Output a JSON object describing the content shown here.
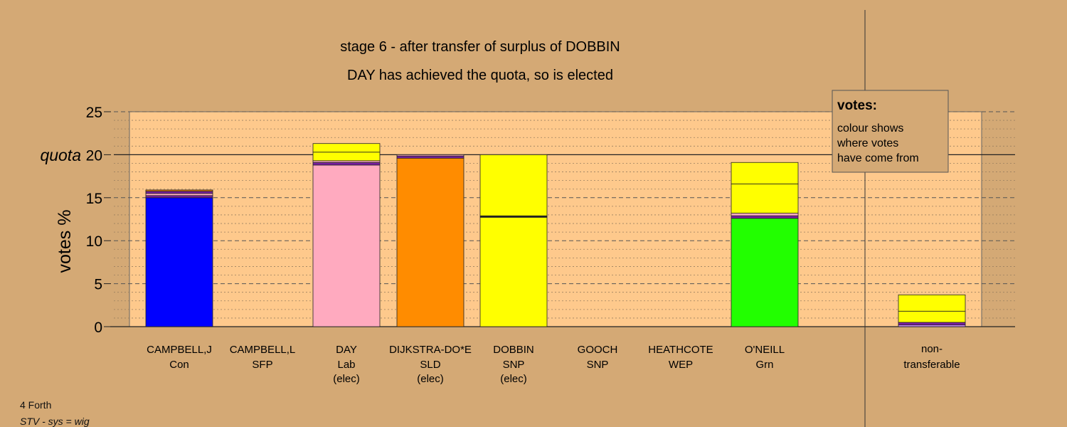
{
  "chart_data": {
    "type": "bar",
    "stacked": true,
    "title": "stage 6 - after transfer of surplus of DOBBIN",
    "subtitle": "DAY has achieved the quota, so is elected",
    "ylabel": "votes %",
    "ylim": [
      0,
      25
    ],
    "yticks": [
      "0",
      "5",
      "10",
      "15",
      "20",
      "25"
    ],
    "quota_label": "quota",
    "quota_value": 20,
    "grid": true,
    "legend": {
      "title": "votes:",
      "lines": [
        "colour shows",
        "where votes",
        "have come from"
      ],
      "placement": "top-right"
    },
    "candidates": [
      {
        "name": "CAMPBELL,J",
        "party": "Con",
        "status": "",
        "segments": [
          {
            "value": 15.0,
            "color": "#0000ff"
          },
          {
            "value": 0.25,
            "color": "#7b1fa2"
          },
          {
            "value": 0.25,
            "color": "#ffaabf"
          },
          {
            "value": 0.25,
            "color": "#7b1fa2"
          },
          {
            "value": 0.15,
            "color": "#ff8c00"
          }
        ]
      },
      {
        "name": "CAMPBELL,L",
        "party": "SFP",
        "status": "",
        "segments": []
      },
      {
        "name": "DAY",
        "party": "Lab",
        "status": "(elec)",
        "segments": [
          {
            "value": 18.8,
            "color": "#ffaabf"
          },
          {
            "value": 0.3,
            "color": "#7b1fa2"
          },
          {
            "value": 0.2,
            "color": "#ffaabf"
          },
          {
            "value": 1.0,
            "color": "#ffff00"
          },
          {
            "value": 1.0,
            "color": "#ffff00"
          }
        ]
      },
      {
        "name": "DIJKSTRA-DO*E",
        "party": "SLD",
        "status": "(elec)",
        "segments": [
          {
            "value": 19.6,
            "color": "#ff8c00"
          },
          {
            "value": 0.25,
            "color": "#7b1fa2"
          },
          {
            "value": 0.15,
            "color": "#ffaabf"
          }
        ]
      },
      {
        "name": "DOBBIN",
        "party": "SNP",
        "status": "(elec)",
        "segments": [
          {
            "value": 12.8,
            "color": "#ffff00"
          },
          {
            "value": 7.2,
            "color": "#ffff00"
          }
        ]
      },
      {
        "name": "GOOCH",
        "party": "SNP",
        "status": "",
        "segments": []
      },
      {
        "name": "HEATHCOTE",
        "party": "WEP",
        "status": "",
        "segments": []
      },
      {
        "name": "O'NEILL",
        "party": "Grn",
        "status": "",
        "segments": [
          {
            "value": 12.6,
            "color": "#22ff00"
          },
          {
            "value": 0.3,
            "color": "#7b1fa2"
          },
          {
            "value": 0.3,
            "color": "#ffaabf"
          },
          {
            "value": 3.4,
            "color": "#ffff00"
          },
          {
            "value": 2.5,
            "color": "#ffff00"
          }
        ]
      }
    ],
    "non_transferable": {
      "label_line1": "non-",
      "label_line2": "transferable",
      "segments": [
        {
          "value": 0.2,
          "color": "#cc88ff"
        },
        {
          "value": 0.3,
          "color": "#7b1fa2"
        },
        {
          "value": 1.3,
          "color": "#ffff00"
        },
        {
          "value": 1.9,
          "color": "#ffff00"
        }
      ]
    },
    "colors": {
      "background": "#d4a975",
      "plot_background": "#fec98c",
      "legend_background": "#d4a975"
    }
  },
  "footer": {
    "line1": "4 Forth",
    "line2": "STV - sys = wig"
  }
}
